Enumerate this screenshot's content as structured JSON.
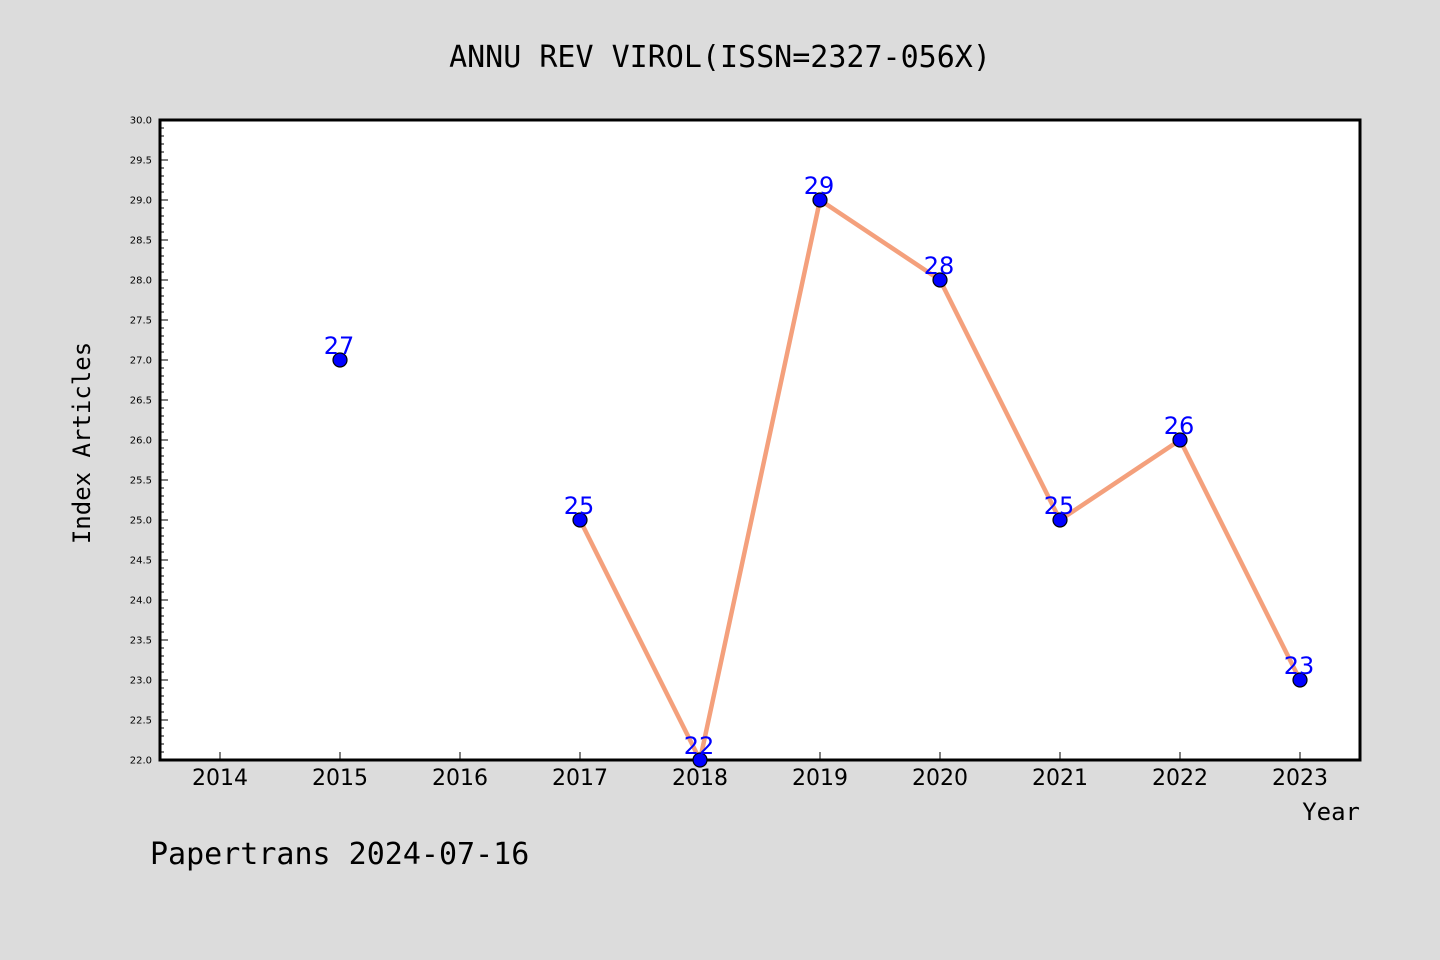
{
  "chart_data": {
    "type": "line",
    "title": "ANNU REV VIROL(ISSN=2327-056X)",
    "xlabel": "Year",
    "ylabel": "Index Articles",
    "x_ticks": [
      "2014",
      "2015",
      "2016",
      "2017",
      "2018",
      "2019",
      "2020",
      "2021",
      "2022",
      "2023"
    ],
    "xlim": [
      2013.5,
      2023.5
    ],
    "ylim": [
      22.0,
      30.0
    ],
    "y_ticks": [
      "22.0",
      "22.5",
      "23.0",
      "23.5",
      "24.0",
      "24.5",
      "25.0",
      "25.5",
      "26.0",
      "26.5",
      "27.0",
      "27.5",
      "28.0",
      "28.5",
      "29.0",
      "29.5",
      "30.0"
    ],
    "grid": false,
    "series": [
      {
        "x": [
          2015,
          2017,
          2018,
          2019,
          2020,
          2021,
          2022,
          2023
        ],
        "values": [
          27,
          25,
          22,
          29,
          28,
          25,
          26,
          23
        ],
        "labels": [
          "27",
          "25",
          "22",
          "29",
          "28",
          "25",
          "26",
          "23"
        ],
        "line_segments_from": [
          2017,
          2018,
          2019,
          2020,
          2021,
          2022
        ],
        "line_color": "#f4a07c",
        "marker_color": "#0000ff"
      }
    ]
  },
  "footer": "Papertrans 2024-07-16",
  "colors": {
    "background": "#dcdcdc",
    "plot_background": "#ffffff",
    "line": "#f4a07c",
    "marker": "#0000ff",
    "label": "#0000ff"
  }
}
